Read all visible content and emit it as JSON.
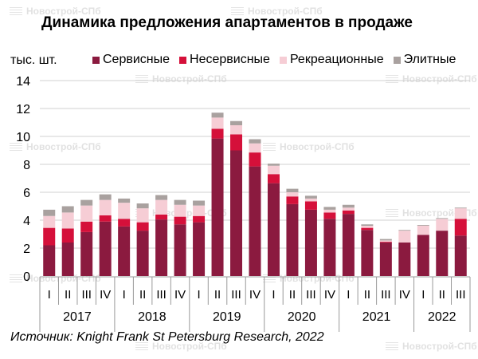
{
  "watermark": "Новострой-СПб",
  "chart_data": {
    "type": "bar",
    "stacked": true,
    "title": "Динамика предложения апартаментов в продаже",
    "ylabel": "тыс. шт.",
    "xlabel": "",
    "ylim": [
      0,
      14
    ],
    "yticks": [
      0,
      2,
      4,
      6,
      8,
      10,
      12,
      14
    ],
    "grid": true,
    "legend_position": "top",
    "categories": [
      "I",
      "II",
      "III",
      "IV",
      "I",
      "II",
      "III",
      "IV",
      "I",
      "II",
      "III",
      "IV",
      "I",
      "II",
      "III",
      "IV",
      "I",
      "II",
      "III",
      "IV",
      "I",
      "II",
      "III"
    ],
    "groups": [
      {
        "label": "2017",
        "count": 4
      },
      {
        "label": "2018",
        "count": 4
      },
      {
        "label": "2019",
        "count": 4
      },
      {
        "label": "2020",
        "count": 4
      },
      {
        "label": "2021",
        "count": 4
      },
      {
        "label": "2022",
        "count": 3
      }
    ],
    "series": [
      {
        "name": "Сервисные",
        "color": "#8b1a3f",
        "values": [
          2.2,
          2.4,
          3.15,
          3.9,
          3.55,
          3.25,
          4.05,
          3.7,
          3.85,
          9.85,
          9.0,
          7.85,
          6.65,
          5.15,
          4.75,
          4.1,
          4.45,
          3.3,
          2.4,
          2.4,
          2.95,
          3.25,
          2.9
        ]
      },
      {
        "name": "Несервисные",
        "color": "#d5103a",
        "values": [
          1.25,
          1.0,
          0.75,
          0.45,
          0.55,
          0.6,
          0.35,
          0.55,
          0.45,
          0.7,
          1.15,
          1.0,
          0.65,
          0.55,
          0.6,
          0.45,
          0.25,
          0.15,
          0.05,
          0.0,
          0.0,
          0.0,
          1.2
        ]
      },
      {
        "name": "Рекреационные",
        "color": "#f6cdd5",
        "values": [
          0.85,
          1.15,
          1.15,
          1.1,
          1.15,
          1.0,
          1.05,
          0.85,
          0.75,
          0.8,
          0.65,
          0.65,
          0.6,
          0.3,
          0.2,
          0.2,
          0.2,
          0.15,
          0.1,
          0.85,
          0.65,
          0.85,
          0.75
        ]
      },
      {
        "name": "Элитные",
        "color": "#a9a19f",
        "values": [
          0.45,
          0.45,
          0.4,
          0.4,
          0.3,
          0.35,
          0.35,
          0.35,
          0.35,
          0.35,
          0.3,
          0.3,
          0.15,
          0.25,
          0.2,
          0.2,
          0.2,
          0.1,
          0.1,
          0.05,
          0.05,
          0.05,
          0.05
        ]
      }
    ],
    "source": "Источник: Knight Frank St Petersburg Research, 2022"
  }
}
